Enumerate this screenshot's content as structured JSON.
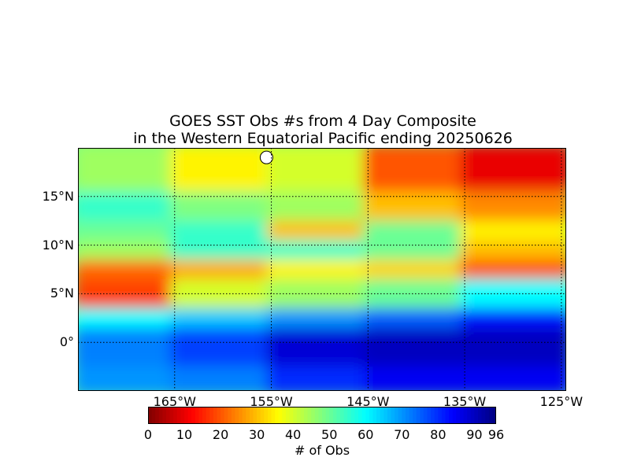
{
  "chart_data": {
    "type": "heatmap",
    "title": "GOES SST Obs #s from 4 Day Composite",
    "subtitle": "in the Western Equatorial Pacific ending 20250626",
    "x_ticks": [
      {
        "lon": -165,
        "label": "165°W"
      },
      {
        "lon": -155,
        "label": "155°W"
      },
      {
        "lon": -145,
        "label": "145°W"
      },
      {
        "lon": -135,
        "label": "135°W"
      },
      {
        "lon": -125,
        "label": "125°W"
      }
    ],
    "y_ticks": [
      {
        "lat": 0,
        "label": "0°"
      },
      {
        "lat": 5,
        "label": "5°N"
      },
      {
        "lat": 10,
        "label": "10°N"
      },
      {
        "lat": 15,
        "label": "15°N"
      }
    ],
    "xlim": [
      -175,
      -124.5
    ],
    "ylim": [
      -5,
      20
    ],
    "grid": true,
    "colorbar": {
      "label": "# of Obs",
      "min": 0,
      "max": 96,
      "ticks": [
        {
          "value": 0,
          "label": "0"
        },
        {
          "value": 10,
          "label": "10"
        },
        {
          "value": 20,
          "label": "20"
        },
        {
          "value": 30,
          "label": "30"
        },
        {
          "value": 40,
          "label": "40"
        },
        {
          "value": 50,
          "label": "50"
        },
        {
          "value": 60,
          "label": "60"
        },
        {
          "value": 70,
          "label": "70"
        },
        {
          "value": 80,
          "label": "80"
        },
        {
          "value": 90,
          "label": "90"
        },
        {
          "value": 96,
          "label": "96"
        }
      ],
      "colormap": "jet_r",
      "orientation": "horizontal"
    },
    "lat_bands": [
      -5,
      -2,
      2,
      4,
      7,
      9,
      11,
      13,
      16,
      20
    ],
    "lon_bands": [
      -175,
      -165,
      -155,
      -145,
      -135,
      -124.5
    ],
    "band_values": [
      [
        70,
        72,
        80,
        85,
        85
      ],
      [
        72,
        78,
        88,
        90,
        90
      ],
      [
        60,
        65,
        70,
        75,
        82
      ],
      [
        18,
        40,
        45,
        50,
        60
      ],
      [
        22,
        28,
        35,
        32,
        20
      ],
      [
        45,
        55,
        55,
        50,
        30
      ],
      [
        50,
        55,
        30,
        50,
        35
      ],
      [
        55,
        48,
        45,
        30,
        25
      ],
      [
        45,
        35,
        40,
        20,
        10
      ]
    ],
    "land": {
      "name": "Hawaii (Big Island)",
      "lon": -155.5,
      "lat": 19.5
    }
  }
}
